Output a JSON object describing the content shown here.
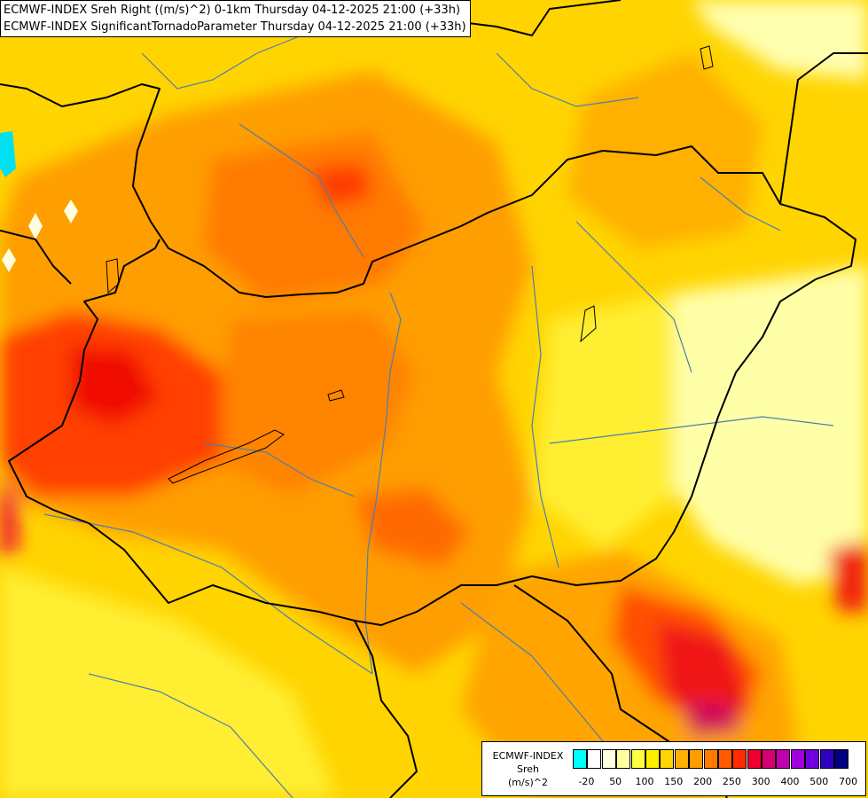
{
  "title": {
    "line1": "ECMWF-INDEX Sreh Right ((m/s)^2) 0-1km Thursday 04-12-2025 21:00 (+33h)",
    "line2": "ECMWF-INDEX SignificantTornadoParameter Thursday 04-12-2025 21:00 (+33h)"
  },
  "legend": {
    "model": "ECMWF-INDEX",
    "parameter": "Sreh",
    "unit": "(m/s)^2",
    "swatch_colors": [
      "#00ffff",
      "#ffffff",
      "#ffffe0",
      "#ffffa0",
      "#ffff40",
      "#ffee00",
      "#ffd400",
      "#ffb000",
      "#ff9c00",
      "#ff7a00",
      "#ff5a00",
      "#ff2a00",
      "#f00030",
      "#d60070",
      "#c000b0",
      "#a000e0",
      "#7000e0",
      "#3000c0",
      "#000080"
    ],
    "ticks": [
      "-20",
      "50",
      "100",
      "150",
      "200",
      "250",
      "300",
      "400",
      "500",
      "700"
    ]
  },
  "colors": {
    "background": "#ffd400",
    "border_national": "#000000",
    "river": "#4a7fb0"
  }
}
